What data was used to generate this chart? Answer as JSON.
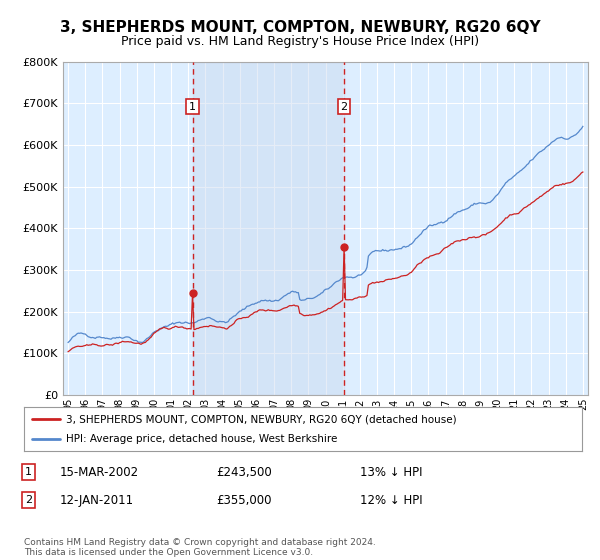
{
  "title": "3, SHEPHERDS MOUNT, COMPTON, NEWBURY, RG20 6QY",
  "subtitle": "Price paid vs. HM Land Registry's House Price Index (HPI)",
  "title_fontsize": 11,
  "subtitle_fontsize": 9,
  "bg_color": "#ddeeff",
  "grid_color": "#ffffff",
  "hpi_color": "#5588cc",
  "price_color": "#cc2222",
  "vline_color": "#cc2222",
  "shade_color": "#c8d8ee",
  "legend_label_red": "3, SHEPHERDS MOUNT, COMPTON, NEWBURY, RG20 6QY (detached house)",
  "legend_label_blue": "HPI: Average price, detached house, West Berkshire",
  "sale1_date": "15-MAR-2002",
  "sale1_price": "£243,500",
  "sale1_pct": "13% ↓ HPI",
  "sale2_date": "12-JAN-2011",
  "sale2_price": "£355,000",
  "sale2_pct": "12% ↓ HPI",
  "footer": "Contains HM Land Registry data © Crown copyright and database right 2024.\nThis data is licensed under the Open Government Licence v3.0.",
  "ylim": [
    0,
    800000
  ],
  "yticks": [
    0,
    100000,
    200000,
    300000,
    400000,
    500000,
    600000,
    700000,
    800000
  ],
  "start_year": 1995,
  "end_year": 2025,
  "xtick_years": [
    1995,
    1996,
    1997,
    1998,
    1999,
    2000,
    2001,
    2002,
    2003,
    2004,
    2005,
    2006,
    2007,
    2008,
    2009,
    2010,
    2011,
    2012,
    2013,
    2014,
    2015,
    2016,
    2017,
    2018,
    2019,
    2020,
    2021,
    2022,
    2023,
    2024,
    2025
  ],
  "sale1_x": 7.25,
  "sale1_y": 243500,
  "sale2_x": 16.08,
  "sale2_y": 355000,
  "n_months": 361
}
